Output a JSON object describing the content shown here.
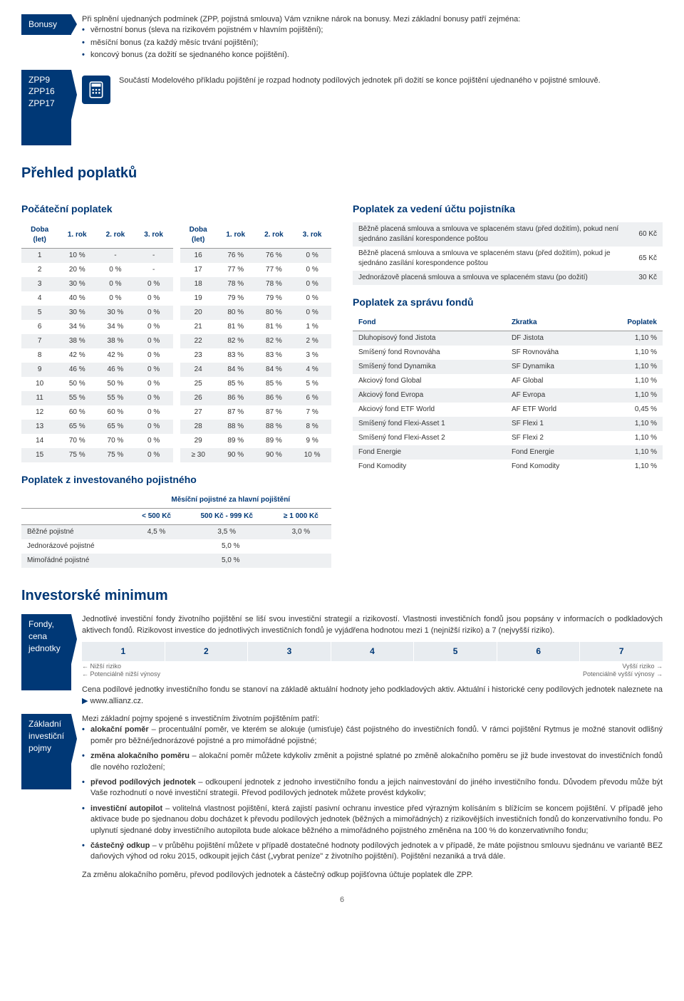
{
  "bonusy": {
    "title": "Bonusy",
    "intro": "Při splnění ujednaných podmínek (ZPP, pojistná smlouva) Vám vznikne nárok na bonusy. Mezi základní bonusy patří zejména:",
    "items": [
      "věrnostní bonus (sleva na rizikovém pojistném v hlavním pojištění);",
      "měsíční bonus (za každý měsíc trvání pojištění);",
      "koncový bonus (za dožití se sjednaného konce pojištění)."
    ],
    "codes": "ZPP9\nZPP16\nZPP17",
    "calc": "Součástí Modelového příkladu pojištění je rozpad hodnoty podílových jednotek při dožití se konce pojištění ujednaného v pojistné smlouvě."
  },
  "prehled": {
    "title": "Přehled poplatků",
    "pocatecni": {
      "title": "Počáteční poplatek",
      "h": [
        "Doba\n(let)",
        "1. rok",
        "2. rok",
        "3. rok"
      ],
      "left": [
        [
          "1",
          "10 %",
          "-",
          "-"
        ],
        [
          "2",
          "20 %",
          "0 %",
          "-"
        ],
        [
          "3",
          "30 %",
          "0 %",
          "0 %"
        ],
        [
          "4",
          "40 %",
          "0 %",
          "0 %"
        ],
        [
          "5",
          "30 %",
          "30 %",
          "0 %"
        ],
        [
          "6",
          "34 %",
          "34 %",
          "0 %"
        ],
        [
          "7",
          "38 %",
          "38 %",
          "0 %"
        ],
        [
          "8",
          "42 %",
          "42 %",
          "0 %"
        ],
        [
          "9",
          "46 %",
          "46 %",
          "0 %"
        ],
        [
          "10",
          "50 %",
          "50 %",
          "0 %"
        ],
        [
          "11",
          "55 %",
          "55 %",
          "0 %"
        ],
        [
          "12",
          "60 %",
          "60 %",
          "0 %"
        ],
        [
          "13",
          "65 %",
          "65 %",
          "0 %"
        ],
        [
          "14",
          "70 %",
          "70 %",
          "0 %"
        ],
        [
          "15",
          "75 %",
          "75 %",
          "0 %"
        ]
      ],
      "right": [
        [
          "16",
          "76 %",
          "76 %",
          "0 %"
        ],
        [
          "17",
          "77 %",
          "77 %",
          "0 %"
        ],
        [
          "18",
          "78 %",
          "78 %",
          "0 %"
        ],
        [
          "19",
          "79 %",
          "79 %",
          "0 %"
        ],
        [
          "20",
          "80 %",
          "80 %",
          "0 %"
        ],
        [
          "21",
          "81 %",
          "81 %",
          "1 %"
        ],
        [
          "22",
          "82 %",
          "82 %",
          "2 %"
        ],
        [
          "23",
          "83 %",
          "83 %",
          "3 %"
        ],
        [
          "24",
          "84 %",
          "84 %",
          "4 %"
        ],
        [
          "25",
          "85 %",
          "85 %",
          "5 %"
        ],
        [
          "26",
          "86 %",
          "86 %",
          "6 %"
        ],
        [
          "27",
          "87 %",
          "87 %",
          "7 %"
        ],
        [
          "28",
          "88 %",
          "88 %",
          "8 %"
        ],
        [
          "29",
          "89 %",
          "89 %",
          "9 %"
        ],
        [
          "≥ 30",
          "90 %",
          "90 %",
          "10 %"
        ]
      ]
    },
    "investovane": {
      "title": "Poplatek z investovaného pojistného",
      "header": "Měsíční pojistné za hlavní pojištění",
      "cols": [
        "< 500 Kč",
        "500 Kč - 999 Kč",
        "≥ 1 000 Kč"
      ],
      "rows": [
        {
          "l": "Běžné pojistné",
          "v": [
            "4,5 %",
            "3,5 %",
            "3,0 %"
          ]
        },
        {
          "l": "Jednorázové pojistné",
          "v": [
            "5,0 %"
          ]
        },
        {
          "l": "Mimořádné pojistné",
          "v": [
            "5,0 %"
          ]
        }
      ]
    },
    "vedeni": {
      "title": "Poplatek za vedení účtu pojistníka",
      "rows": [
        {
          "l": "Běžně placená smlouva a smlouva ve splaceném stavu (před dožitím), pokud není sjednáno zasílání korespondence poštou",
          "v": "60 Kč"
        },
        {
          "l": "Běžně placená smlouva a smlouva ve splaceném stavu (před dožitím), pokud je sjednáno zasílání korespondence poštou",
          "v": "65 Kč"
        },
        {
          "l": "Jednorázově placená smlouva a smlouva ve splaceném stavu (po dožití)",
          "v": "30 Kč"
        }
      ]
    },
    "sprava": {
      "title": "Poplatek za správu fondů",
      "h": [
        "Fond",
        "Zkratka",
        "Poplatek"
      ],
      "rows": [
        [
          "Dluhopisový fond Jistota",
          "DF Jistota",
          "1,10 %"
        ],
        [
          "Smíšený fond Rovnováha",
          "SF Rovnováha",
          "1,10 %"
        ],
        [
          "Smíšený fond Dynamika",
          "SF Dynamika",
          "1,10 %"
        ],
        [
          "Akciový fond Global",
          "AF Global",
          "1,10 %"
        ],
        [
          "Akciový fond Evropa",
          "AF Evropa",
          "1,10 %"
        ],
        [
          "Akciový fond ETF World",
          "AF ETF World",
          "0,45 %"
        ],
        [
          "Smíšený fond Flexi-Asset 1",
          "SF Flexi 1",
          "1,10 %"
        ],
        [
          "Smíšený fond Flexi-Asset 2",
          "SF Flexi 2",
          "1,10 %"
        ],
        [
          "Fond Energie",
          "Fond Energie",
          "1,10 %"
        ],
        [
          "Fond Komodity",
          "Fond Komodity",
          "1,10 %"
        ]
      ]
    }
  },
  "invest": {
    "title": "Investorské minimum",
    "fondy": {
      "title": "Fondy,\ncena\njednotky",
      "p1": "Jednotlivé investiční fondy životního pojištění se liší svou investiční strategií a rizikovostí. Vlastnosti investičních fondů jsou popsány v informacích o podkladových aktivech fondů. Rizikovost investice do jednotlivých investičních fondů je vyjádřena hodnotou mezi 1 (nejnižší riziko) a 7 (nejvyšší riziko).",
      "scale": [
        "1",
        "2",
        "3",
        "4",
        "5",
        "6",
        "7"
      ],
      "ll1": "← Nižší riziko",
      "ll2": "← Potenciálně nižší výnosy",
      "lr1": "Vyšší riziko →",
      "lr2": "Potenciálně vyšší výnosy →",
      "p2a": "Cena podílové jednotky investičního fondu se stanoví na základě aktuální hodnoty jeho podkladových aktiv. Aktuální i historické ceny podílových jednotek naleznete na ",
      "p2b": "www.allianz.cz."
    },
    "pojmy": {
      "title": "Základní\ninvestiční\npojmy",
      "intro": "Mezi základní pojmy spojené s investičním životním pojištěním patří:",
      "items": [
        {
          "b": "alokační poměr",
          "t": " – procentuální poměr, ve kterém se alokuje (umisťuje) část pojistného do investičních fondů. V rámci pojištění Rytmus je možné stanovit odlišný poměr pro běžné/jednorázové pojistné a pro mimořádné pojistné;"
        },
        {
          "b": "změna alokačního poměru",
          "t": " – alokační poměr můžete kdykoliv změnit a pojistné splatné po změně alokačního poměru se již bude investovat do investičních fondů dle nového rozložení;"
        },
        {
          "b": "převod podílových jednotek",
          "t": " – odkoupení jednotek z jednoho investičního fondu a jejich nainvestování do jiného investičního fondu. Důvodem převodu může být Vaše rozhodnutí o nové investiční strategii. Převod podílových jednotek můžete provést kdykoliv;"
        },
        {
          "b": "investiční autopilot",
          "t": " – volitelná vlastnost pojištění, která zajistí pasivní ochranu investice před výrazným kolísáním s blížícím se koncem pojištění. V případě jeho aktivace bude po sjednanou dobu docházet k převodu podílových jednotek (běžných a mimořádných) z rizikovějších investičních fondů do konzervativního fondu. Po uplynutí sjednané doby investičního autopilota bude alokace běžného a mimořádného pojistného změněna na 100 % do konzervativního fondu;"
        },
        {
          "b": "částečný odkup",
          "t": " – v průběhu pojištění můžete v případě dostatečné hodnoty podílových jednotek a v případě, že máte pojistnou smlouvu sjednánu ve variantě BEZ daňových výhod od roku 2015, odkoupit jejich část („vybrat peníze\" z životního pojištění). Pojištění nezaniká a trvá dále."
        }
      ],
      "outro": "Za změnu alokačního poměru, převod podílových jednotek a částečný odkup pojišťovna účtuje poplatek dle ZPP."
    }
  },
  "page": "6"
}
